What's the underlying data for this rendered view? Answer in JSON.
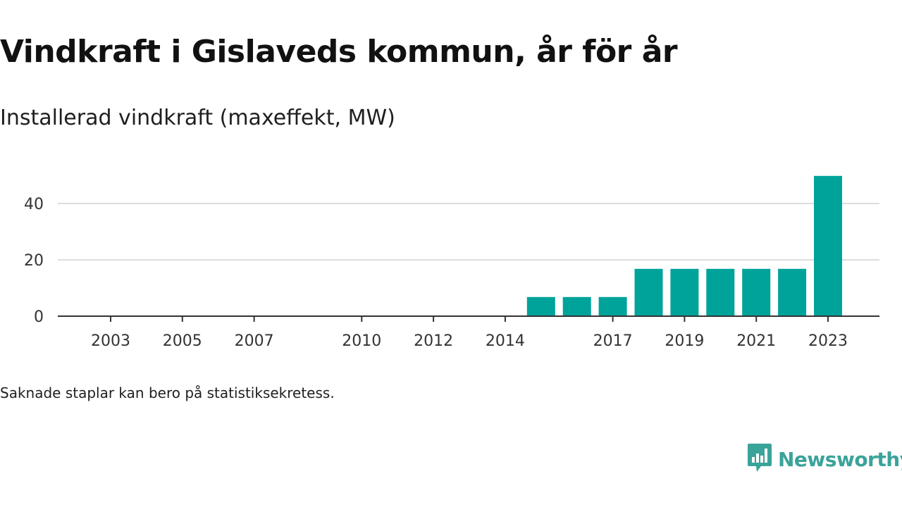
{
  "title": "Vindkraft i Gislaveds kommun, år för år",
  "subtitle": "Installerad vindkraft (maxeffekt, MW)",
  "note": "Saknade staplar kan bero på statistiksekretess.",
  "brand": {
    "name": "Newsworthy",
    "icon": "bar-chart-speech-bubble-icon",
    "color": "#3aa39a"
  },
  "colors": {
    "bar": "#00a39a",
    "grid": "#dddddd",
    "axis": "#333333"
  },
  "chart_data": {
    "type": "bar",
    "title": "Vindkraft i Gislaveds kommun, år för år",
    "subtitle": "Installerad vindkraft (maxeffekt, MW)",
    "xlabel": "",
    "ylabel": "",
    "categories": [
      2003,
      2004,
      2005,
      2006,
      2007,
      2008,
      2009,
      2010,
      2011,
      2012,
      2013,
      2014,
      2015,
      2016,
      2017,
      2018,
      2019,
      2020,
      2021,
      2022,
      2023
    ],
    "values": [
      null,
      null,
      null,
      null,
      null,
      null,
      null,
      0,
      0,
      0,
      0,
      0,
      6.8,
      6.8,
      6.8,
      16.8,
      16.8,
      16.8,
      16.8,
      16.8,
      49.8
    ],
    "xticks": [
      2003,
      2005,
      2007,
      2010,
      2012,
      2014,
      2017,
      2019,
      2021,
      2023
    ],
    "yticks": [
      0,
      20,
      40
    ],
    "ylim": [
      0,
      50
    ],
    "grid": true,
    "legend": "none"
  }
}
